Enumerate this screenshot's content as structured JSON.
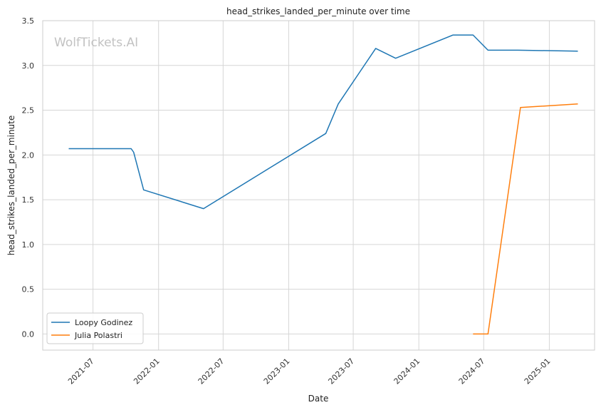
{
  "chart_data": {
    "type": "line",
    "title": "head_strikes_landed_per_minute over time",
    "xlabel": "Date",
    "ylabel": "head_strikes_landed_per_minute",
    "watermark": "WolfTickets.AI",
    "xlim": [
      "2021-02-10",
      "2025-05-08"
    ],
    "ylim": [
      -0.18,
      3.5
    ],
    "x_ticks": [
      "2021-07",
      "2022-01",
      "2022-07",
      "2023-01",
      "2023-07",
      "2024-01",
      "2024-07",
      "2025-01"
    ],
    "y_ticks": [
      "0.0",
      "0.5",
      "1.0",
      "1.5",
      "2.0",
      "2.5",
      "3.0",
      "3.5"
    ],
    "grid": true,
    "legend_position": "lower-left",
    "series": [
      {
        "name": "Loopy Godinez",
        "color": "#1f77b4",
        "points": [
          [
            "2021-04-24",
            2.07
          ],
          [
            "2021-10-16",
            2.07
          ],
          [
            "2021-10-23",
            2.03
          ],
          [
            "2021-11-20",
            1.61
          ],
          [
            "2022-05-07",
            1.4
          ],
          [
            "2023-04-15",
            2.24
          ],
          [
            "2023-05-20",
            2.57
          ],
          [
            "2023-09-02",
            3.19
          ],
          [
            "2023-10-28",
            3.08
          ],
          [
            "2024-04-06",
            3.34
          ],
          [
            "2024-06-01",
            3.34
          ],
          [
            "2024-07-13",
            3.17
          ],
          [
            "2024-10-05",
            3.17
          ],
          [
            "2025-03-22",
            3.16
          ]
        ]
      },
      {
        "name": "Julia Polastri",
        "color": "#ff7f0e",
        "points": [
          [
            "2024-06-01",
            0.0
          ],
          [
            "2024-07-13",
            0.0
          ],
          [
            "2024-10-12",
            2.53
          ],
          [
            "2025-03-22",
            2.57
          ]
        ]
      }
    ]
  }
}
